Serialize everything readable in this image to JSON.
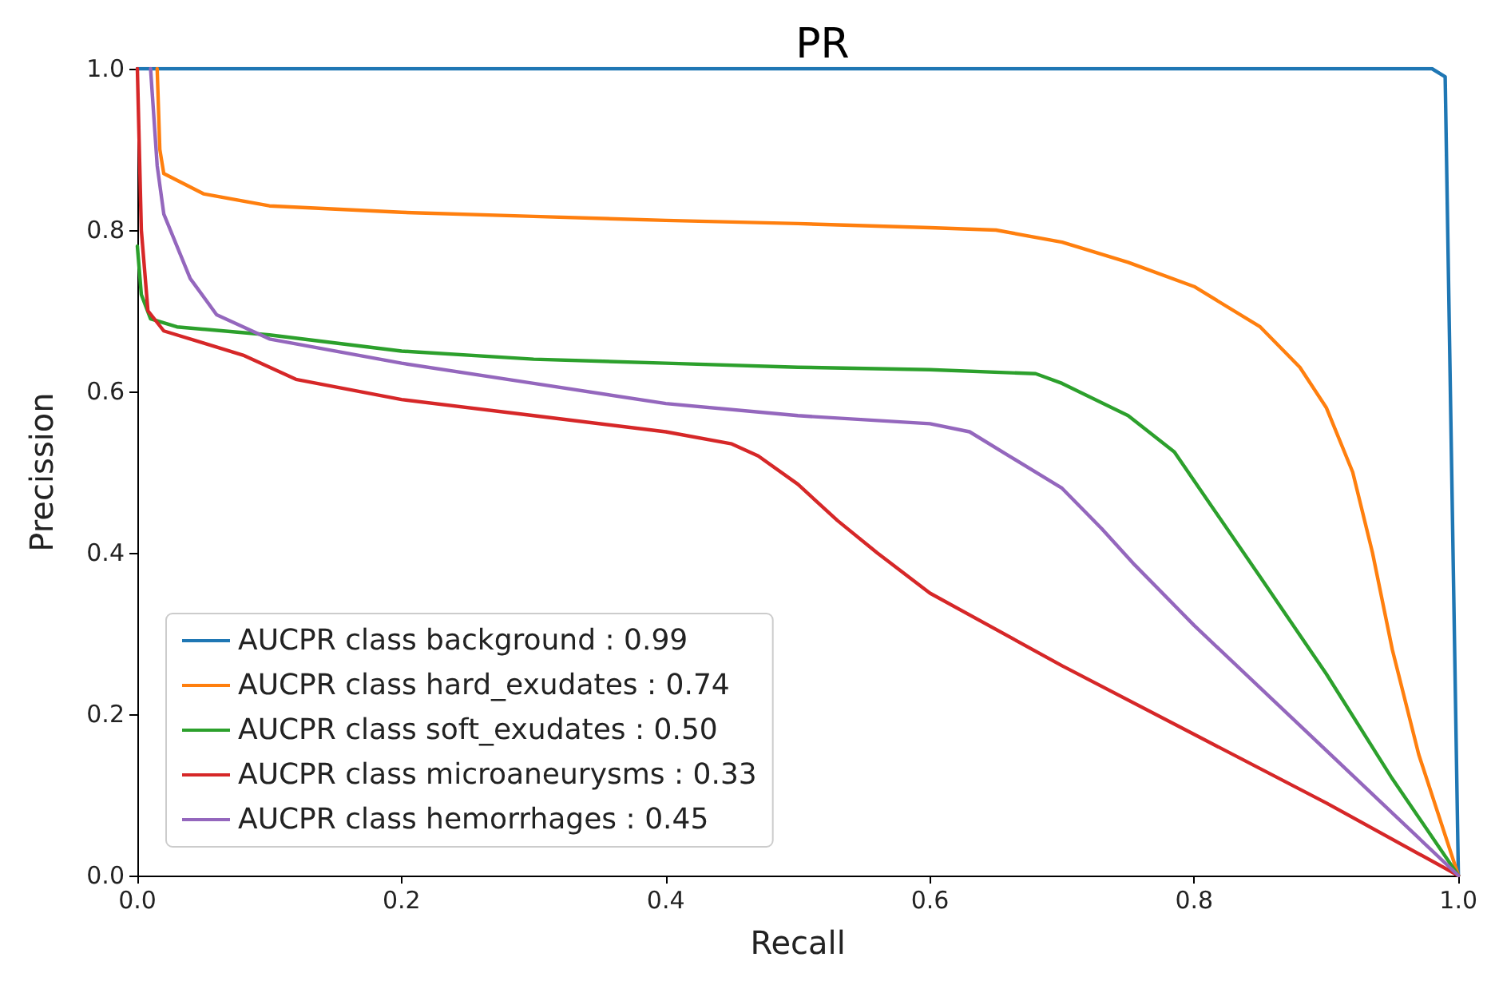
{
  "chart_data": {
    "type": "line",
    "title": "PR",
    "xlabel": "Recall",
    "ylabel": "Precission",
    "xlim": [
      0,
      1
    ],
    "ylim": [
      0,
      1
    ],
    "xticks": [
      {
        "value": 0,
        "label": "0.0"
      },
      0.2,
      0.4,
      0.6,
      0.8,
      {
        "value": 1,
        "label": "1.0"
      }
    ],
    "yticks": [
      {
        "value": 0,
        "label": "0.0"
      },
      0.2,
      0.4,
      0.6,
      0.8,
      {
        "value": 1,
        "label": "1.0"
      }
    ],
    "grid": false,
    "legend": "bottom left",
    "marker": "none",
    "line_style": "solid",
    "series": [
      {
        "name": "AUCPR class background : 0.99",
        "color": "#1f77b4",
        "x": [
          0,
          0.98,
          0.99,
          1.0
        ],
        "values": [
          1,
          1,
          0.99,
          0
        ]
      },
      {
        "name": "AUCPR class hard_exudates : 0.74",
        "color": "#ff7f0e",
        "x": [
          0.015,
          0.017,
          0.02,
          0.05,
          0.1,
          0.2,
          0.3,
          0.4,
          0.5,
          0.6,
          0.65,
          0.7,
          0.75,
          0.8,
          0.85,
          0.88,
          0.9,
          0.92,
          0.935,
          0.95,
          0.97,
          1.0
        ],
        "values": [
          1.0,
          0.9,
          0.87,
          0.845,
          0.83,
          0.822,
          0.817,
          0.812,
          0.808,
          0.803,
          0.8,
          0.785,
          0.76,
          0.73,
          0.68,
          0.63,
          0.58,
          0.5,
          0.4,
          0.28,
          0.15,
          0
        ]
      },
      {
        "name": "AUCPR class soft_exudates : 0.50",
        "color": "#2ca02c",
        "x": [
          0,
          0.003,
          0.01,
          0.03,
          0.1,
          0.2,
          0.3,
          0.4,
          0.5,
          0.6,
          0.68,
          0.7,
          0.75,
          0.785,
          0.85,
          0.9,
          0.95,
          1.0
        ],
        "values": [
          0.78,
          0.72,
          0.69,
          0.68,
          0.67,
          0.65,
          0.64,
          0.635,
          0.63,
          0.627,
          0.622,
          0.61,
          0.57,
          0.525,
          0.37,
          0.25,
          0.12,
          0
        ]
      },
      {
        "name": "AUCPR class microaneurysms : 0.33",
        "color": "#d62728",
        "x": [
          0,
          0.003,
          0.008,
          0.02,
          0.05,
          0.08,
          0.12,
          0.2,
          0.3,
          0.4,
          0.45,
          0.47,
          0.5,
          0.53,
          0.56,
          0.6,
          0.7,
          0.8,
          0.9,
          1.0
        ],
        "values": [
          1.0,
          0.8,
          0.7,
          0.675,
          0.66,
          0.645,
          0.615,
          0.59,
          0.57,
          0.55,
          0.535,
          0.52,
          0.485,
          0.44,
          0.4,
          0.35,
          0.26,
          0.175,
          0.09,
          0
        ]
      },
      {
        "name": "AUCPR class hemorrhages : 0.45",
        "color": "#9467bd",
        "x": [
          0.01,
          0.015,
          0.02,
          0.04,
          0.06,
          0.1,
          0.2,
          0.3,
          0.4,
          0.5,
          0.6,
          0.63,
          0.66,
          0.7,
          0.73,
          0.755,
          0.8,
          0.9,
          1.0
        ],
        "values": [
          1.0,
          0.88,
          0.82,
          0.74,
          0.695,
          0.665,
          0.635,
          0.61,
          0.585,
          0.57,
          0.56,
          0.55,
          0.52,
          0.48,
          0.43,
          0.385,
          0.31,
          0.155,
          0
        ]
      }
    ]
  }
}
